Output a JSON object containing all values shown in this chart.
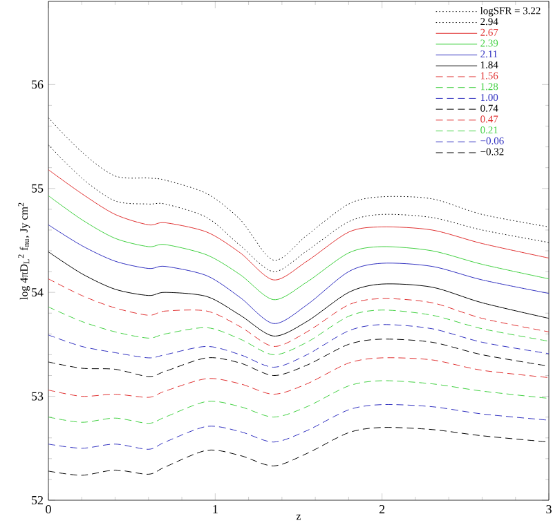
{
  "chart_data": {
    "type": "line",
    "xlabel": "z",
    "ylabel": "log 4πD$_{L}$$^{2}$ f$_{nu}$, Jy cm$^{2}$",
    "x": [
      0,
      0.2,
      0.4,
      0.6,
      0.7,
      0.95,
      1.15,
      1.35,
      1.55,
      1.8,
      2.0,
      2.3,
      2.6,
      3.0
    ],
    "xlim": [
      0,
      3
    ],
    "xticks": [
      0,
      1,
      2,
      3
    ],
    "ylim": [
      52,
      56.8
    ],
    "yticks": [
      52,
      53,
      54,
      55,
      56
    ],
    "legend": "top right",
    "grid": false,
    "marker": "none",
    "series": [
      {
        "name": "logSFR = 3.22",
        "color": "#000000",
        "line_style": "dotted",
        "values": [
          55.68,
          55.35,
          55.12,
          55.1,
          55.08,
          54.95,
          54.7,
          54.31,
          54.55,
          54.85,
          54.92,
          54.9,
          54.75,
          54.63
        ]
      },
      {
        "name": "2.94",
        "color": "#000000",
        "line_style": "dotted",
        "values": [
          55.42,
          55.1,
          54.88,
          54.85,
          54.85,
          54.72,
          54.45,
          54.2,
          54.4,
          54.68,
          54.75,
          54.72,
          54.6,
          54.48
        ]
      },
      {
        "name": "2.67",
        "color": "#e03030",
        "line_style": "solid",
        "values": [
          55.18,
          54.95,
          54.75,
          54.65,
          54.67,
          54.58,
          54.38,
          54.12,
          54.3,
          54.58,
          54.63,
          54.6,
          54.47,
          54.33
        ]
      },
      {
        "name": "2.39",
        "color": "#40d040",
        "line_style": "solid",
        "values": [
          54.93,
          54.7,
          54.52,
          54.44,
          54.46,
          54.36,
          54.17,
          53.93,
          54.1,
          54.38,
          54.44,
          54.4,
          54.27,
          54.13
        ]
      },
      {
        "name": "2.11",
        "color": "#3030c0",
        "line_style": "solid",
        "values": [
          54.65,
          54.45,
          54.3,
          54.23,
          54.25,
          54.16,
          53.95,
          53.7,
          53.88,
          54.2,
          54.28,
          54.25,
          54.12,
          53.99
        ]
      },
      {
        "name": "1.84",
        "color": "#000000",
        "line_style": "solid",
        "values": [
          54.39,
          54.18,
          54.03,
          53.97,
          54.0,
          53.96,
          53.78,
          53.58,
          53.72,
          54.0,
          54.08,
          54.05,
          53.9,
          53.75
        ]
      },
      {
        "name": "1.56",
        "color": "#e03030",
        "line_style": "dashed",
        "values": [
          54.13,
          53.97,
          53.85,
          53.78,
          53.82,
          53.82,
          53.67,
          53.48,
          53.62,
          53.88,
          53.94,
          53.9,
          53.75,
          53.62
        ]
      },
      {
        "name": "1.28",
        "color": "#40d040",
        "line_style": "dashed",
        "values": [
          53.86,
          53.72,
          53.62,
          53.56,
          53.6,
          53.66,
          53.55,
          53.4,
          53.52,
          53.77,
          53.83,
          53.78,
          53.65,
          53.53
        ]
      },
      {
        "name": "1.00",
        "color": "#3030c0",
        "line_style": "dashed",
        "values": [
          53.59,
          53.48,
          53.42,
          53.37,
          53.4,
          53.48,
          53.4,
          53.28,
          53.4,
          53.63,
          53.69,
          53.65,
          53.52,
          53.41
        ]
      },
      {
        "name": "0.74",
        "color": "#000000",
        "line_style": "dashed",
        "values": [
          53.33,
          53.27,
          53.26,
          53.19,
          53.24,
          53.37,
          53.32,
          53.2,
          53.3,
          53.5,
          53.55,
          53.52,
          53.4,
          53.29
        ]
      },
      {
        "name": "0.47",
        "color": "#e03030",
        "line_style": "dashed",
        "values": [
          53.06,
          53.0,
          53.02,
          52.99,
          53.05,
          53.17,
          53.12,
          53.02,
          53.12,
          53.32,
          53.37,
          53.35,
          53.25,
          53.18
        ]
      },
      {
        "name": "0.21",
        "color": "#40d040",
        "line_style": "dashed",
        "values": [
          52.8,
          52.75,
          52.79,
          52.74,
          52.8,
          52.95,
          52.9,
          52.8,
          52.9,
          53.1,
          53.15,
          53.12,
          53.05,
          52.98
        ]
      },
      {
        "name": "−0.06",
        "color": "#3030c0",
        "line_style": "dashed",
        "values": [
          52.54,
          52.5,
          52.54,
          52.49,
          52.56,
          52.71,
          52.66,
          52.56,
          52.67,
          52.87,
          52.92,
          52.9,
          52.83,
          52.77
        ]
      },
      {
        "name": "−0.32",
        "color": "#000000",
        "line_style": "dashed",
        "values": [
          52.28,
          52.24,
          52.29,
          52.25,
          52.32,
          52.48,
          52.43,
          52.33,
          52.45,
          52.65,
          52.7,
          52.68,
          52.62,
          52.56
        ]
      }
    ]
  }
}
